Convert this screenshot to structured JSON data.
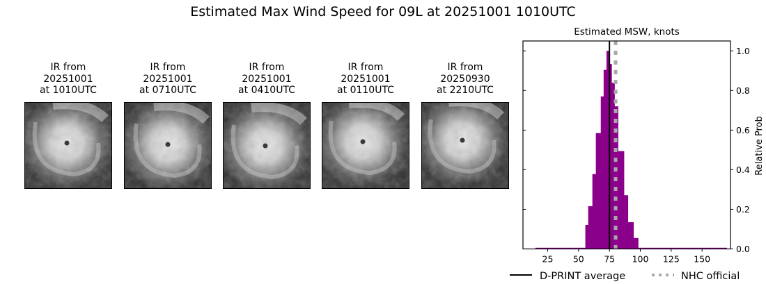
{
  "figure": {
    "suptitle": "Estimated Max Wind Speed for 09L at 20251001 1010UTC"
  },
  "panels": [
    {
      "title_line1": "IR from",
      "title_line2": "20251001",
      "title_line3": "at 1010UTC",
      "eye_x": 60,
      "eye_y": 58
    },
    {
      "title_line1": "IR from",
      "title_line2": "20251001",
      "title_line3": "at 0710UTC",
      "eye_x": 62,
      "eye_y": 60
    },
    {
      "title_line1": "IR from",
      "title_line2": "20251001",
      "title_line3": "at 0410UTC",
      "eye_x": 60,
      "eye_y": 62
    },
    {
      "title_line1": "IR from",
      "title_line2": "20251001",
      "title_line3": "at 0110UTC",
      "eye_x": 58,
      "eye_y": 56
    },
    {
      "title_line1": "IR from",
      "title_line2": "20250930",
      "title_line3": "at 2210UTC",
      "eye_x": 58,
      "eye_y": 54
    }
  ],
  "chart_data": {
    "type": "bar",
    "title": "Estimated MSW, knots",
    "xlabel": "",
    "ylabel": "Relative Prob",
    "xlim": [
      5,
      173
    ],
    "ylim": [
      0,
      1.05
    ],
    "xticks": [
      25,
      50,
      75,
      100,
      125,
      150
    ],
    "yticks": [
      0.0,
      0.2,
      0.4,
      0.6,
      0.8,
      1.0
    ],
    "ytick_labels": [
      "0.0",
      "0.2",
      "0.4",
      "0.6",
      "0.8",
      "1.0"
    ],
    "y_axis_side": "right",
    "grid": false,
    "bar_color": "#8b008b",
    "bins": [
      {
        "x0": 15.0,
        "x1": 55.5,
        "height": 0.006
      },
      {
        "x0": 55.5,
        "x1": 57.8,
        "height": 0.121
      },
      {
        "x0": 57.8,
        "x1": 61.2,
        "height": 0.216
      },
      {
        "x0": 61.2,
        "x1": 64.0,
        "height": 0.378
      },
      {
        "x0": 64.0,
        "x1": 68.0,
        "height": 0.585
      },
      {
        "x0": 68.0,
        "x1": 70.3,
        "height": 0.77
      },
      {
        "x0": 70.3,
        "x1": 72.6,
        "height": 0.904
      },
      {
        "x0": 72.6,
        "x1": 75.1,
        "height": 1.0
      },
      {
        "x0": 75.1,
        "x1": 76.8,
        "height": 0.934
      },
      {
        "x0": 76.8,
        "x1": 79.2,
        "height": 0.839
      },
      {
        "x0": 79.2,
        "x1": 82.0,
        "height": 0.72
      },
      {
        "x0": 82.0,
        "x1": 86.8,
        "height": 0.494
      },
      {
        "x0": 86.8,
        "x1": 90.0,
        "height": 0.271
      },
      {
        "x0": 90.0,
        "x1": 94.5,
        "height": 0.135
      },
      {
        "x0": 94.5,
        "x1": 98.3,
        "height": 0.055
      },
      {
        "x0": 98.3,
        "x1": 170.0,
        "height": 0.006
      }
    ],
    "vlines": [
      {
        "name": "D-PRINT average",
        "x": 75,
        "color": "#000000",
        "style": "solid"
      },
      {
        "name": "NHC official",
        "x": 80,
        "color": "#a9a9a9",
        "style": "dotted"
      }
    ],
    "legend": {
      "position": "below",
      "entries": [
        "D-PRINT average",
        "NHC official"
      ]
    }
  }
}
